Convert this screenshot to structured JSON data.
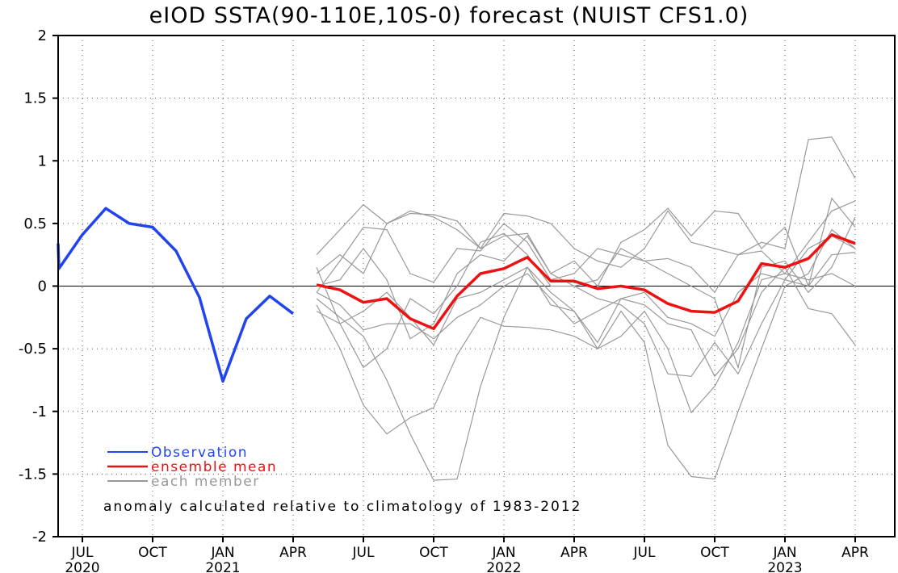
{
  "chart_data": {
    "type": "line",
    "title": "eIOD SSTA(90-110E,10S-0) forecast (NUIST CFS1.0)",
    "note": "anomaly calculated relative to climatology of 1983-2012",
    "ylim": [
      -2,
      2
    ],
    "xlim": [
      0,
      35
    ],
    "y_ticks": [
      2,
      1.5,
      1,
      0.5,
      0,
      -0.5,
      -1,
      -1.5,
      -2
    ],
    "x_ticks": [
      {
        "x": 2,
        "month": "JUL",
        "year": "2020"
      },
      {
        "x": 5,
        "month": "OCT",
        "year": ""
      },
      {
        "x": 8,
        "month": "JAN",
        "year": "2021"
      },
      {
        "x": 11,
        "month": "APR",
        "year": ""
      },
      {
        "x": 14,
        "month": "JUL",
        "year": ""
      },
      {
        "x": 17,
        "month": "OCT",
        "year": ""
      },
      {
        "x": 20,
        "month": "JAN",
        "year": "2022"
      },
      {
        "x": 23,
        "month": "APR",
        "year": ""
      },
      {
        "x": 26,
        "month": "JUL",
        "year": ""
      },
      {
        "x": 29,
        "month": "OCT",
        "year": ""
      },
      {
        "x": 32,
        "month": "JAN",
        "year": "2023"
      },
      {
        "x": 35,
        "month": "APR",
        "year": ""
      }
    ],
    "zero_line": true,
    "grid": true,
    "legend_position": "bottom-left",
    "legend": [
      {
        "label": "Observation",
        "color": "#2244ee"
      },
      {
        "label": "ensemble mean",
        "color": "#ee1111"
      },
      {
        "label": "each member",
        "color": "#999999"
      }
    ],
    "series": [
      {
        "name": "Observation",
        "color": "#2244ee",
        "x": [
          0,
          1,
          2,
          3,
          4,
          5,
          6,
          7,
          8,
          9,
          10,
          11
        ],
        "values": [
          0.34,
          0.14,
          0.41,
          0.62,
          0.5,
          0.47,
          0.28,
          -0.09,
          -0.76,
          -0.26,
          -0.08,
          -0.22
        ]
      },
      {
        "name": "ensemble mean",
        "color": "#ee1111",
        "x": [
          12,
          13,
          14,
          15,
          16,
          17,
          18,
          19,
          20,
          21,
          22,
          23,
          24,
          25,
          26,
          27,
          28,
          29,
          30,
          31,
          32,
          33,
          34,
          35
        ],
        "values": [
          0.01,
          -0.03,
          -0.13,
          -0.1,
          -0.26,
          -0.34,
          -0.08,
          0.1,
          0.14,
          0.23,
          0.04,
          0.04,
          -0.02,
          0.0,
          -0.03,
          -0.14,
          -0.2,
          -0.21,
          -0.12,
          0.18,
          0.15,
          0.22,
          0.41,
          0.34
        ]
      }
    ],
    "members": [
      {
        "x": [
          12,
          13,
          14,
          15,
          16,
          17,
          18,
          19,
          20,
          21,
          22,
          23,
          24,
          25,
          26,
          27,
          28,
          29,
          30,
          31,
          32,
          33,
          34,
          35
        ],
        "values": [
          0.25,
          0.45,
          0.65,
          0.5,
          0.58,
          0.57,
          0.52,
          0.3,
          0.58,
          0.56,
          0.5,
          0.3,
          0.2,
          0.15,
          0.3,
          0.6,
          0.35,
          0.3,
          0.25,
          0.35,
          0.3,
          1.17,
          1.19,
          0.86
        ]
      },
      {
        "x": [
          12,
          13,
          14,
          15,
          16,
          17,
          18,
          19,
          20,
          21,
          22,
          23,
          24,
          25,
          26,
          27,
          28,
          29,
          30,
          31,
          32,
          33,
          34,
          35
        ],
        "values": [
          0.1,
          0.25,
          0.1,
          0.5,
          0.6,
          0.55,
          0.45,
          0.3,
          0.4,
          0.42,
          0.1,
          0.2,
          0.0,
          0.35,
          0.45,
          0.62,
          0.4,
          0.6,
          0.58,
          0.3,
          0.47,
          0.0,
          0.7,
          0.47
        ]
      },
      {
        "x": [
          12,
          13,
          14,
          15,
          16,
          17,
          18,
          19,
          20,
          21,
          22,
          23,
          24,
          25,
          26,
          27,
          28,
          29,
          30,
          31,
          32,
          33,
          34,
          35
        ],
        "values": [
          -0.05,
          0.2,
          0.47,
          0.45,
          0.1,
          0.03,
          0.3,
          0.28,
          0.5,
          0.35,
          0.05,
          0.1,
          0.3,
          0.25,
          0.2,
          0.22,
          0.15,
          -0.05,
          0.25,
          0.28,
          0.1,
          0.35,
          0.6,
          0.68
        ]
      },
      {
        "x": [
          12,
          13,
          14,
          15,
          16,
          17,
          18,
          19,
          20,
          21,
          22,
          23,
          24,
          25,
          26,
          27,
          28,
          29,
          30,
          31,
          32,
          33,
          34,
          35
        ],
        "values": [
          0.15,
          -0.3,
          -0.65,
          -0.5,
          -0.1,
          -0.22,
          0.0,
          0.35,
          0.42,
          0.25,
          0.0,
          0.0,
          -0.1,
          -0.15,
          -0.3,
          -0.7,
          -0.72,
          -0.45,
          -0.7,
          -0.3,
          0.05,
          0.3,
          0.4,
          0.3
        ]
      },
      {
        "x": [
          12,
          13,
          14,
          15,
          16,
          17,
          18,
          19,
          20,
          21,
          22,
          23,
          24,
          25,
          26,
          27,
          28,
          29,
          30,
          31,
          32,
          33,
          34,
          35
        ],
        "values": [
          -0.1,
          -0.25,
          -0.4,
          -0.75,
          -1.18,
          -1.55,
          -1.54,
          -0.8,
          -0.25,
          0.15,
          -0.05,
          -0.2,
          -0.5,
          -0.2,
          -0.45,
          -1.27,
          -1.52,
          -1.54,
          -1.0,
          -0.5,
          0.0,
          0.1,
          0.45,
          0.3
        ]
      },
      {
        "x": [
          12,
          13,
          14,
          15,
          16,
          17,
          18,
          19,
          20,
          21,
          22,
          23,
          24,
          25,
          26,
          27,
          28,
          29,
          30,
          31,
          32,
          33,
          34,
          35
        ],
        "values": [
          -0.15,
          -0.5,
          -0.95,
          -1.18,
          -1.05,
          -0.97,
          -0.55,
          -0.25,
          -0.32,
          -0.33,
          -0.35,
          -0.4,
          -0.5,
          -0.4,
          -0.2,
          -0.5,
          -1.01,
          -0.8,
          -0.45,
          0.05,
          0.1,
          0.05,
          0.1,
          0.0
        ]
      },
      {
        "x": [
          12,
          13,
          14,
          15,
          16,
          17,
          18,
          19,
          20,
          21,
          22,
          23,
          24,
          25,
          26,
          27,
          28,
          29,
          30,
          31,
          32,
          33,
          34,
          35
        ],
        "values": [
          -0.2,
          -0.3,
          -0.2,
          -0.05,
          -0.25,
          -0.47,
          -0.1,
          -0.05,
          0.05,
          0.15,
          -0.15,
          -0.2,
          -0.45,
          -0.1,
          -0.15,
          -0.3,
          -0.35,
          -0.72,
          -0.5,
          -0.05,
          0.15,
          -0.18,
          -0.22,
          -0.47
        ]
      },
      {
        "x": [
          12,
          13,
          14,
          15,
          16,
          17,
          18,
          19,
          20,
          21,
          22,
          23,
          24,
          25,
          26,
          27,
          28,
          29,
          30,
          31,
          32,
          33,
          34,
          35
        ],
        "values": [
          0.0,
          0.05,
          0.3,
          0.05,
          -0.42,
          -0.3,
          0.1,
          0.25,
          0.2,
          0.4,
          0.1,
          0.0,
          0.05,
          0.3,
          0.2,
          0.1,
          0.0,
          -0.1,
          -0.65,
          0.15,
          0.2,
          -0.05,
          0.15,
          0.55
        ]
      },
      {
        "x": [
          12,
          13,
          14,
          15,
          16,
          17,
          18,
          19,
          20,
          21,
          22,
          23,
          24,
          25,
          26,
          27,
          28,
          29,
          30,
          31,
          32,
          33,
          34,
          35
        ],
        "values": [
          -0.05,
          -0.15,
          -0.35,
          -0.3,
          -0.3,
          -0.42,
          -0.25,
          -0.15,
          0.0,
          0.1,
          -0.1,
          -0.3,
          -0.2,
          -0.1,
          -0.05,
          -0.25,
          -0.3,
          -0.4,
          -0.05,
          0.1,
          0.05,
          0.0,
          0.25,
          0.27
        ]
      }
    ]
  }
}
